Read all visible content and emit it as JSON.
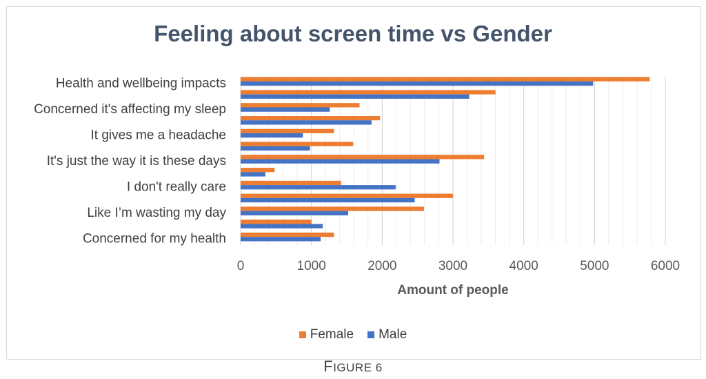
{
  "chart_data": {
    "type": "bar",
    "orientation": "horizontal",
    "title": "Feeling about screen time vs Gender",
    "xlabel": "Amount of people",
    "ylabel": "",
    "xlim": [
      0,
      6000
    ],
    "x_ticks": [
      0,
      1000,
      2000,
      3000,
      4000,
      5000,
      6000
    ],
    "grid": "major-and-minor vertical",
    "legend_position": "bottom",
    "categories": [
      "Health and wellbeing impacts",
      "",
      "Concerned it's affecting my sleep",
      "",
      "It gives me a headache",
      "",
      "It's just the way it is these days",
      "",
      "I don't really care",
      "",
      "Like I’m wasting my day",
      "",
      "Concerned for my health"
    ],
    "series": [
      {
        "name": "Female",
        "color": "#ed7d31",
        "values": [
          5780,
          3600,
          1680,
          1970,
          1320,
          1590,
          3440,
          480,
          1420,
          3000,
          2590,
          1000,
          1320
        ]
      },
      {
        "name": "Male",
        "color": "#4472c4",
        "values": [
          4980,
          3230,
          1260,
          1850,
          880,
          980,
          2810,
          350,
          2190,
          2460,
          1520,
          1160,
          1130
        ]
      }
    ]
  },
  "caption": "Figure 6"
}
